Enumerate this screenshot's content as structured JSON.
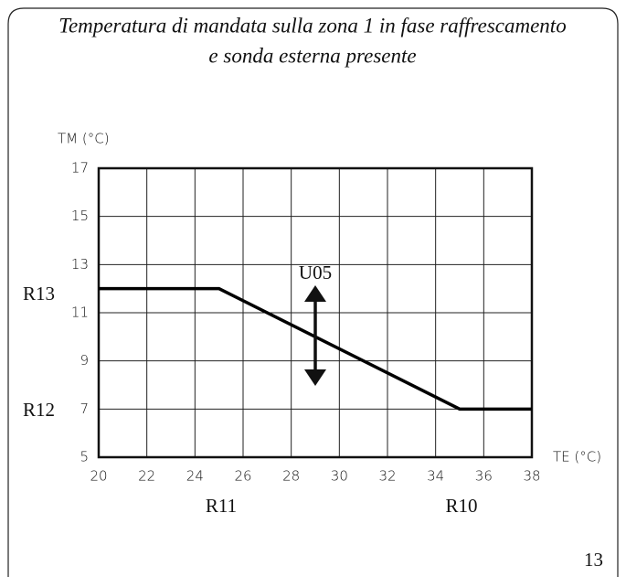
{
  "chart_data": {
    "type": "line",
    "title": "Temperatura di mandata sulla zona 1 in fase raffrescamento",
    "subtitle": "e sonda esterna presente",
    "y_label": "TM (°C)",
    "x_label": "TE (°C)",
    "x": [
      20,
      25,
      35,
      38
    ],
    "series": [
      {
        "name": "U05",
        "color": "#000000",
        "values": [
          12,
          12,
          7,
          7
        ]
      }
    ],
    "xlim": [
      20,
      38
    ],
    "xticks": [
      20,
      22,
      24,
      26,
      28,
      30,
      32,
      34,
      36,
      38
    ],
    "ylim": [
      5,
      17
    ],
    "yticks": [
      5,
      7,
      9,
      11,
      13,
      15,
      17
    ],
    "grid": true,
    "annotations": [
      "R13",
      "R12",
      "R11",
      "R10"
    ],
    "page_number": "13"
  }
}
